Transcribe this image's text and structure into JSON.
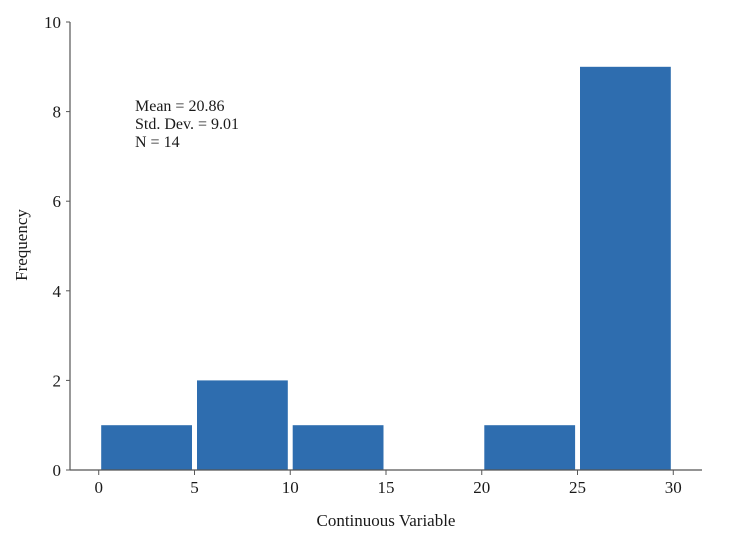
{
  "chart_data": {
    "type": "bar",
    "xlabel": "Continuous Variable",
    "ylabel": "Frequency",
    "bins": [
      {
        "start": 0,
        "end": 5,
        "count": 1
      },
      {
        "start": 5,
        "end": 10,
        "count": 2
      },
      {
        "start": 10,
        "end": 15,
        "count": 1
      },
      {
        "start": 15,
        "end": 20,
        "count": 0
      },
      {
        "start": 20,
        "end": 25,
        "count": 1
      },
      {
        "start": 25,
        "end": 30,
        "count": 9
      }
    ],
    "xlim": [
      -1.5,
      31.5
    ],
    "ylim": [
      0,
      10
    ],
    "x_ticks": [
      "0",
      "5",
      "10",
      "15",
      "20",
      "25",
      "30"
    ],
    "y_ticks": [
      "0",
      "2",
      "4",
      "6",
      "8",
      "10"
    ],
    "grid": false,
    "bar_color": "#2e6daf",
    "stats": {
      "mean_text": "Mean = 20.86",
      "sd_text": "Std. Dev. = 9.01",
      "n_text": "N = 14"
    }
  }
}
